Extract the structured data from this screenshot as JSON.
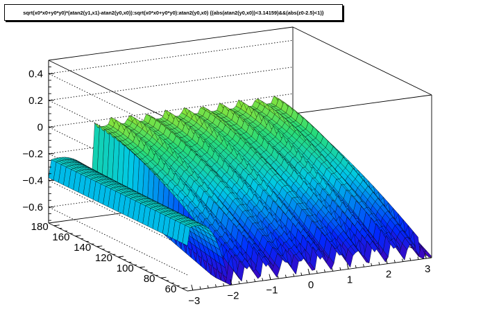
{
  "title": "sqrt(x0*x0+y0*y0)*(atan2(y1,x1)-atan2(y0,x0)):sqrt(x0*x0+y0*y0):atan2(y0,x0) {(abs(atan2(y0,x0))<3.14159)&&(abs(z0-2.5)<1)}",
  "chart_data": {
    "type": "surface",
    "title": "sqrt(x0*x0+y0*y0)*(atan2(y1,x1)-atan2(y0,x0)):sqrt(x0*x0+y0*y0):atan2(y0,x0) {(abs(atan2(y0,x0))<3.14159)&&(abs(z0-2.5)<1)}",
    "x_axis": {
      "label": "",
      "range": [
        -3.14,
        3.14
      ],
      "ticks": [
        "−3",
        "−2",
        "−1",
        "0",
        "1",
        "2",
        "3"
      ]
    },
    "y_axis": {
      "label": "",
      "range": [
        55,
        185
      ],
      "ticks": [
        "60",
        "80",
        "100",
        "120",
        "140",
        "160",
        "180"
      ]
    },
    "z_axis": {
      "label": "",
      "range": [
        -0.72,
        0.5
      ],
      "ticks": [
        "−0.6",
        "−0.4",
        "−0.2",
        "0",
        "0.2",
        "0.4"
      ]
    },
    "surface": {
      "left_region": {
        "x_range": [
          -3.14,
          -2.0
        ],
        "z_at_x_min": -0.38,
        "z_peak": -0.24,
        "z_at_step": -0.68
      },
      "right_region": {
        "x_range": [
          -2.0,
          3.14
        ],
        "z_base": -0.05,
        "z_crest": 0.2,
        "z_trough": -0.71,
        "z_at_x_max_near": -0.35
      },
      "oscillation_count": 11,
      "colormap": "rainbow"
    },
    "grid": true
  }
}
